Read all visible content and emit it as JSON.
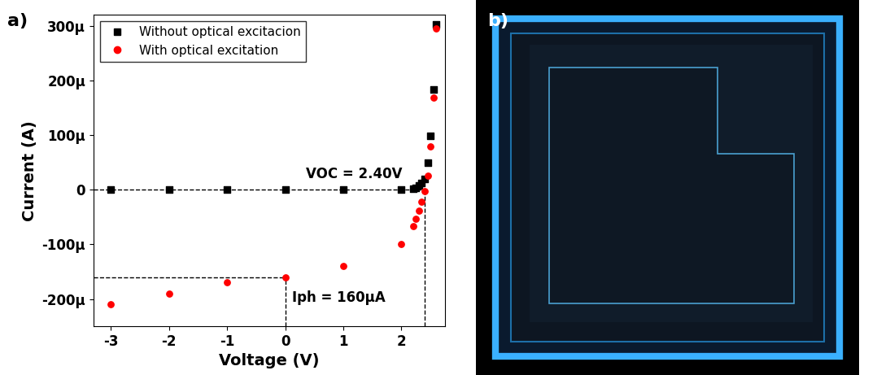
{
  "chart_data": {
    "type": "scatter",
    "title": "a)",
    "x_label": "Voltage (V)",
    "y_label": "Current (A)",
    "series": [
      {
        "name": "Without optical excitacion",
        "color": "#000000",
        "marker": "square",
        "x": [
          -3,
          -2,
          -1,
          0,
          1,
          2,
          2.2,
          2.25,
          2.3,
          2.35,
          2.4,
          2.45,
          2.5,
          2.55,
          2.6
        ],
        "values": [
          0,
          0,
          0,
          0,
          0,
          0,
          2e-06,
          4e-06,
          8e-06,
          1.3e-05,
          2e-05,
          5e-05,
          9.8e-05,
          0.000183,
          0.000303
        ]
      },
      {
        "name": "With optical excitation",
        "color": "#ff0000",
        "marker": "circle",
        "x": [
          -3,
          -2,
          -1,
          0,
          1,
          2,
          2.2,
          2.25,
          2.3,
          2.35,
          2.4,
          2.45,
          2.5,
          2.55,
          2.6
        ],
        "values": [
          -0.00021,
          -0.00019,
          -0.00017,
          -0.00016,
          -0.00014,
          -0.0001,
          -6.6e-05,
          -5.3e-05,
          -3.8e-05,
          -2.2e-05,
          -3e-06,
          2.5e-05,
          7.9e-05,
          0.000168,
          0.000296
        ]
      }
    ],
    "annotations": [
      {
        "text": "VOC = 2.40V",
        "x": 2.4,
        "y": 0
      },
      {
        "text": "Iph = 160µA",
        "x": 0,
        "y": -0.00016
      }
    ],
    "xlim": [
      -3.3,
      2.75
    ],
    "ylim": [
      -0.00025,
      0.00032
    ],
    "xticks": [
      -3,
      -2,
      -1,
      0,
      1,
      2
    ],
    "yticks": [
      {
        "value": -0.0002,
        "label": "-200µ"
      },
      {
        "value": -0.0001,
        "label": "-100µ"
      },
      0,
      {
        "value": 0.0001,
        "label": "100µ"
      },
      {
        "value": 0.0002,
        "label": "200µ"
      },
      {
        "value": 0.0003,
        "label": "300µ"
      }
    ],
    "legend": "upper left",
    "grid": false
  },
  "image": {
    "label": "b)"
  }
}
